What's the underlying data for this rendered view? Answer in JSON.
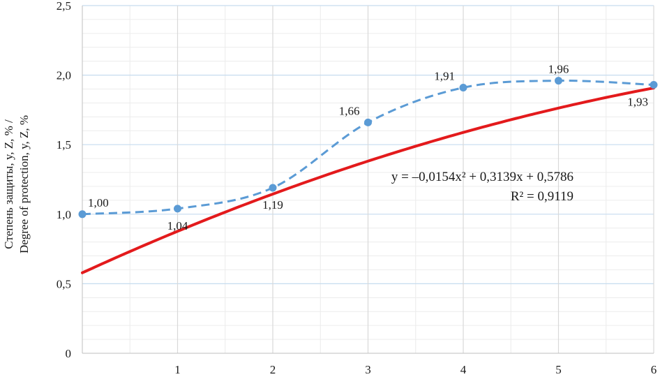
{
  "chart_data": {
    "type": "line",
    "x": [
      0,
      1,
      2,
      3,
      4,
      5,
      6
    ],
    "xticks": [
      "1",
      "2",
      "3",
      "4",
      "5",
      "6"
    ],
    "yticks": [
      "0",
      "0,5",
      "1,0",
      "1,5",
      "2,0",
      "2,5"
    ],
    "ylim": [
      0,
      2.5
    ],
    "xlim": [
      0,
      6
    ],
    "ylabel_line1": "Степень защиты, y, Z, % /",
    "ylabel_line2": "Degree  of  protection,  y,  Z, %",
    "grid": {
      "major": true,
      "minor": true
    },
    "series": [
      {
        "style": "dashed-markers",
        "color": "#5b9bd5",
        "values": [
          1.0,
          1.04,
          1.19,
          1.66,
          1.91,
          1.96,
          1.93
        ],
        "labels": [
          "1,00",
          "1,04",
          "1,19",
          "1,66",
          "1,91",
          "1,96",
          "1,93"
        ]
      }
    ],
    "trendline": {
      "type": "polynomial",
      "order": 2,
      "color": "#e31a1c",
      "coefficients": {
        "a": -0.0154,
        "b": 0.3139,
        "c": 0.5786
      },
      "equation_text": "y = –0,0154x² + 0,3139x + 0,5786",
      "r2_text": "R² = 0,9119"
    }
  }
}
